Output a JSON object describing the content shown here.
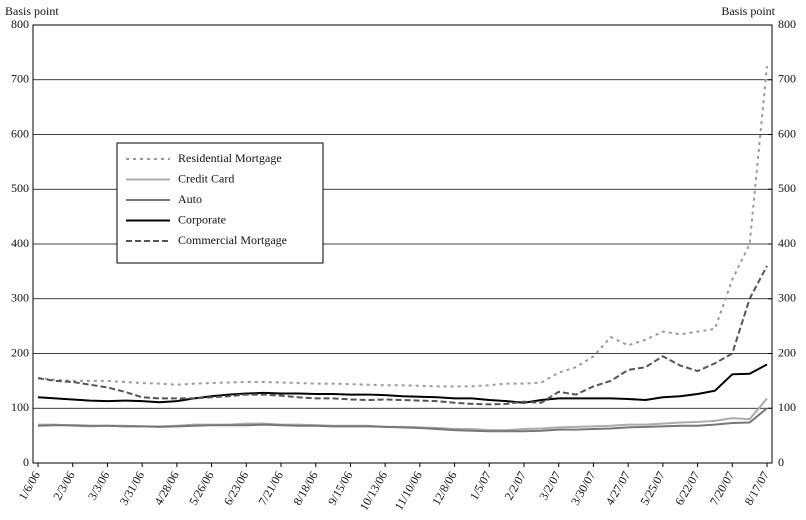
{
  "chart_data": {
    "type": "line",
    "ylabel": "Basis point",
    "y2label": "Basis point",
    "categories": [
      "1/6/06",
      null,
      "2/3/06",
      null,
      "3/3/06",
      null,
      "3/31/06",
      null,
      "4/28/06",
      null,
      "5/26/06",
      null,
      "6/23/06",
      null,
      "7/21/06",
      null,
      "8/18/06",
      null,
      "9/15/06",
      null,
      "10/13/06",
      null,
      "11/10/06",
      null,
      "12/8/06",
      null,
      "1/5/07",
      null,
      "2/2/07",
      null,
      "3/2/07",
      null,
      "3/30/07",
      null,
      "4/27/07",
      null,
      "5/25/07",
      null,
      "6/22/07",
      null,
      "7/20/07",
      null,
      "8/17/07"
    ],
    "series": [
      {
        "name": "Residential Mortgage",
        "color": "#9a9a9a",
        "dash": "dotted",
        "values": [
          155,
          152,
          150,
          150,
          150,
          148,
          146,
          145,
          143,
          145,
          146,
          147,
          148,
          148,
          147,
          146,
          145,
          145,
          144,
          143,
          142,
          142,
          141,
          140,
          140,
          140,
          142,
          145,
          145,
          147,
          165,
          175,
          195,
          230,
          215,
          225,
          240,
          235,
          240,
          245,
          335,
          400,
          725
        ]
      },
      {
        "name": "Credit Card",
        "color": "#ababab",
        "dash": "solid",
        "values": [
          70,
          70,
          68,
          67,
          68,
          68,
          67,
          67,
          68,
          70,
          70,
          70,
          72,
          72,
          70,
          70,
          69,
          68,
          68,
          68,
          66,
          66,
          65,
          64,
          62,
          62,
          60,
          60,
          62,
          63,
          65,
          66,
          67,
          68,
          70,
          70,
          72,
          74,
          75,
          77,
          82,
          80,
          118
        ]
      },
      {
        "name": "Auto",
        "color": "#777777",
        "dash": "solid",
        "values": [
          68,
          69,
          69,
          68,
          68,
          67,
          67,
          66,
          67,
          68,
          69,
          69,
          69,
          70,
          69,
          68,
          68,
          67,
          67,
          67,
          66,
          65,
          64,
          62,
          60,
          59,
          58,
          58,
          58,
          59,
          61,
          61,
          62,
          63,
          65,
          66,
          67,
          68,
          68,
          70,
          73,
          74,
          100
        ]
      },
      {
        "name": "Corporate",
        "color": "#000000",
        "dash": "solid",
        "values": [
          120,
          118,
          116,
          114,
          113,
          114,
          113,
          111,
          113,
          118,
          122,
          125,
          127,
          128,
          127,
          127,
          126,
          126,
          125,
          125,
          124,
          122,
          121,
          120,
          118,
          118,
          115,
          113,
          110,
          115,
          118,
          118,
          118,
          118,
          117,
          115,
          120,
          122,
          126,
          132,
          162,
          163,
          180
        ]
      },
      {
        "name": "Commercial Mortgage",
        "color": "#555555",
        "dash": "dashed",
        "values": [
          155,
          150,
          148,
          143,
          138,
          130,
          120,
          118,
          118,
          118,
          120,
          122,
          125,
          125,
          123,
          120,
          118,
          118,
          116,
          115,
          116,
          115,
          114,
          113,
          110,
          108,
          107,
          108,
          112,
          110,
          130,
          125,
          140,
          150,
          170,
          175,
          195,
          178,
          168,
          182,
          200,
          300,
          360
        ]
      }
    ],
    "ylim": [
      0,
      800
    ],
    "yticks": [
      0,
      100,
      200,
      300,
      400,
      500,
      600,
      700,
      800
    ],
    "y2lim": [
      0,
      800
    ],
    "y2ticks": [
      0,
      100,
      200,
      300,
      400,
      500,
      600,
      700,
      800
    ],
    "grid": true
  }
}
